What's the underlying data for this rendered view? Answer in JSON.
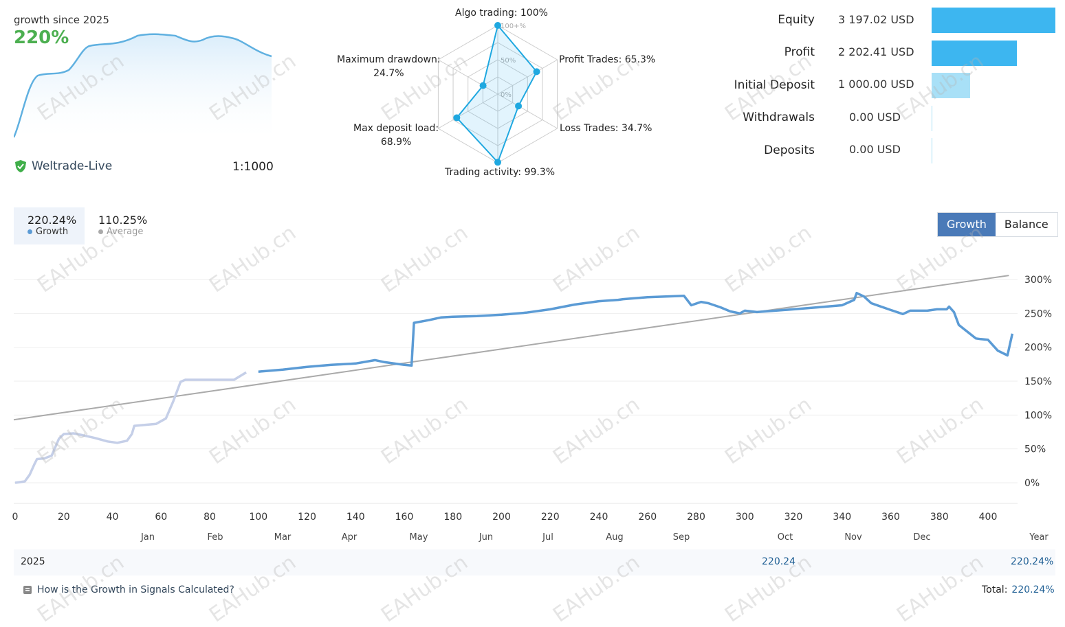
{
  "summary": {
    "growth_since_label": "growth since 2025",
    "growth_value": "220%",
    "broker": "Weltrade-Live",
    "leverage": "1:1000"
  },
  "radar": {
    "axes": [
      {
        "label": "Algo trading: 100%",
        "value": 100
      },
      {
        "label": "Profit Trades: 65.3%",
        "value": 65.3
      },
      {
        "label": "Loss Trades: 34.7%",
        "value": 34.7
      },
      {
        "label": "Trading activity: 99.3%",
        "value": 99.3
      },
      {
        "label": "Max deposit load:",
        "label2": "68.9%",
        "value": 68.9
      },
      {
        "label": "Maximum drawdown:",
        "label2": "24.7%",
        "value": 24.7
      }
    ],
    "ring_labels": [
      "100+%",
      "50%",
      "0%"
    ]
  },
  "stats": [
    {
      "label": "Equity",
      "value": "3 197.02 USD",
      "amount": 3197.02
    },
    {
      "label": "Profit",
      "value": "2 202.41 USD",
      "amount": 2202.41
    },
    {
      "label": "Initial Deposit",
      "value": "1 000.00 USD",
      "amount": 1000.0
    },
    {
      "label": "Withdrawals",
      "value": "0.00 USD",
      "amount": 0
    },
    {
      "label": "Deposits",
      "value": "0.00 USD",
      "amount": 0
    }
  ],
  "legend": {
    "growth_value": "220.24%",
    "growth_label": "Growth",
    "average_value": "110.25%",
    "average_label": "Average"
  },
  "toggle": {
    "growth": "Growth",
    "balance": "Balance"
  },
  "year_table": {
    "year": "2025",
    "value": "220.24",
    "total_row_value": "220.24%",
    "help_link": "How is the Growth in Signals Calculated?",
    "total_label": "Total:",
    "total_value": "220.24%"
  },
  "watermark": "EAHub.cn",
  "colors": {
    "growth_line": "#5b9bd5",
    "growth_line_light": "#c5cfe8",
    "average_line": "#aaaaaa",
    "bar_blue": "#3db6f0",
    "bar_light": "#a8e0f7",
    "accent_green": "#4caf50",
    "link": "#33475b",
    "value_blue": "#1f5f94"
  },
  "chart_data": {
    "type": "line",
    "x_ticks": [
      0,
      20,
      40,
      60,
      80,
      100,
      120,
      140,
      160,
      180,
      200,
      220,
      240,
      260,
      280,
      300,
      320,
      340,
      360,
      380,
      400
    ],
    "months": [
      "Jan",
      "Feb",
      "Mar",
      "Apr",
      "May",
      "Jun",
      "Jul",
      "Aug",
      "Sep",
      "Oct",
      "Nov",
      "Dec",
      "Year"
    ],
    "y_ticks": [
      "300%",
      "250%",
      "200%",
      "150%",
      "100%",
      "50%",
      "0%"
    ],
    "ylim": [
      0,
      300
    ],
    "xlim": [
      0,
      410
    ],
    "grid": true,
    "series": [
      {
        "name": "Growth",
        "x": [
          0,
          4,
          6,
          8,
          9,
          12,
          15,
          18,
          20,
          24,
          28,
          33,
          38,
          42,
          46,
          48,
          49,
          52,
          58,
          62,
          65,
          68,
          70,
          72,
          75,
          80,
          90,
          95,
          100,
          110,
          120,
          130,
          140,
          148,
          152,
          160,
          163,
          164,
          170,
          175,
          180,
          190,
          200,
          210,
          220,
          230,
          240,
          248,
          250,
          260,
          275,
          278,
          282,
          285,
          290,
          294,
          298,
          300,
          305,
          320,
          330,
          340,
          345,
          346,
          349,
          352,
          360,
          365,
          368,
          375,
          379,
          383,
          384,
          386,
          388,
          395,
          397,
          400,
          404,
          408,
          410
        ],
        "y": [
          0,
          2,
          12,
          28,
          35,
          36,
          40,
          65,
          72,
          73,
          70,
          66,
          61,
          59,
          62,
          72,
          84,
          85,
          87,
          95,
          120,
          149,
          152,
          152,
          152,
          152,
          152,
          163,
          164,
          167,
          171,
          174,
          176,
          181,
          178,
          174,
          173,
          236,
          240,
          244,
          245,
          246,
          248,
          251,
          256,
          263,
          268,
          270,
          271,
          274,
          276,
          262,
          267,
          265,
          259,
          253,
          250,
          254,
          252,
          256,
          259,
          262,
          270,
          280,
          275,
          265,
          255,
          249,
          254,
          254,
          256,
          256,
          260,
          252,
          233,
          213,
          212,
          211,
          195,
          188,
          220
        ]
      },
      {
        "name": "Average",
        "x": [
          0,
          410
        ],
        "y": [
          93,
          306
        ]
      }
    ]
  }
}
